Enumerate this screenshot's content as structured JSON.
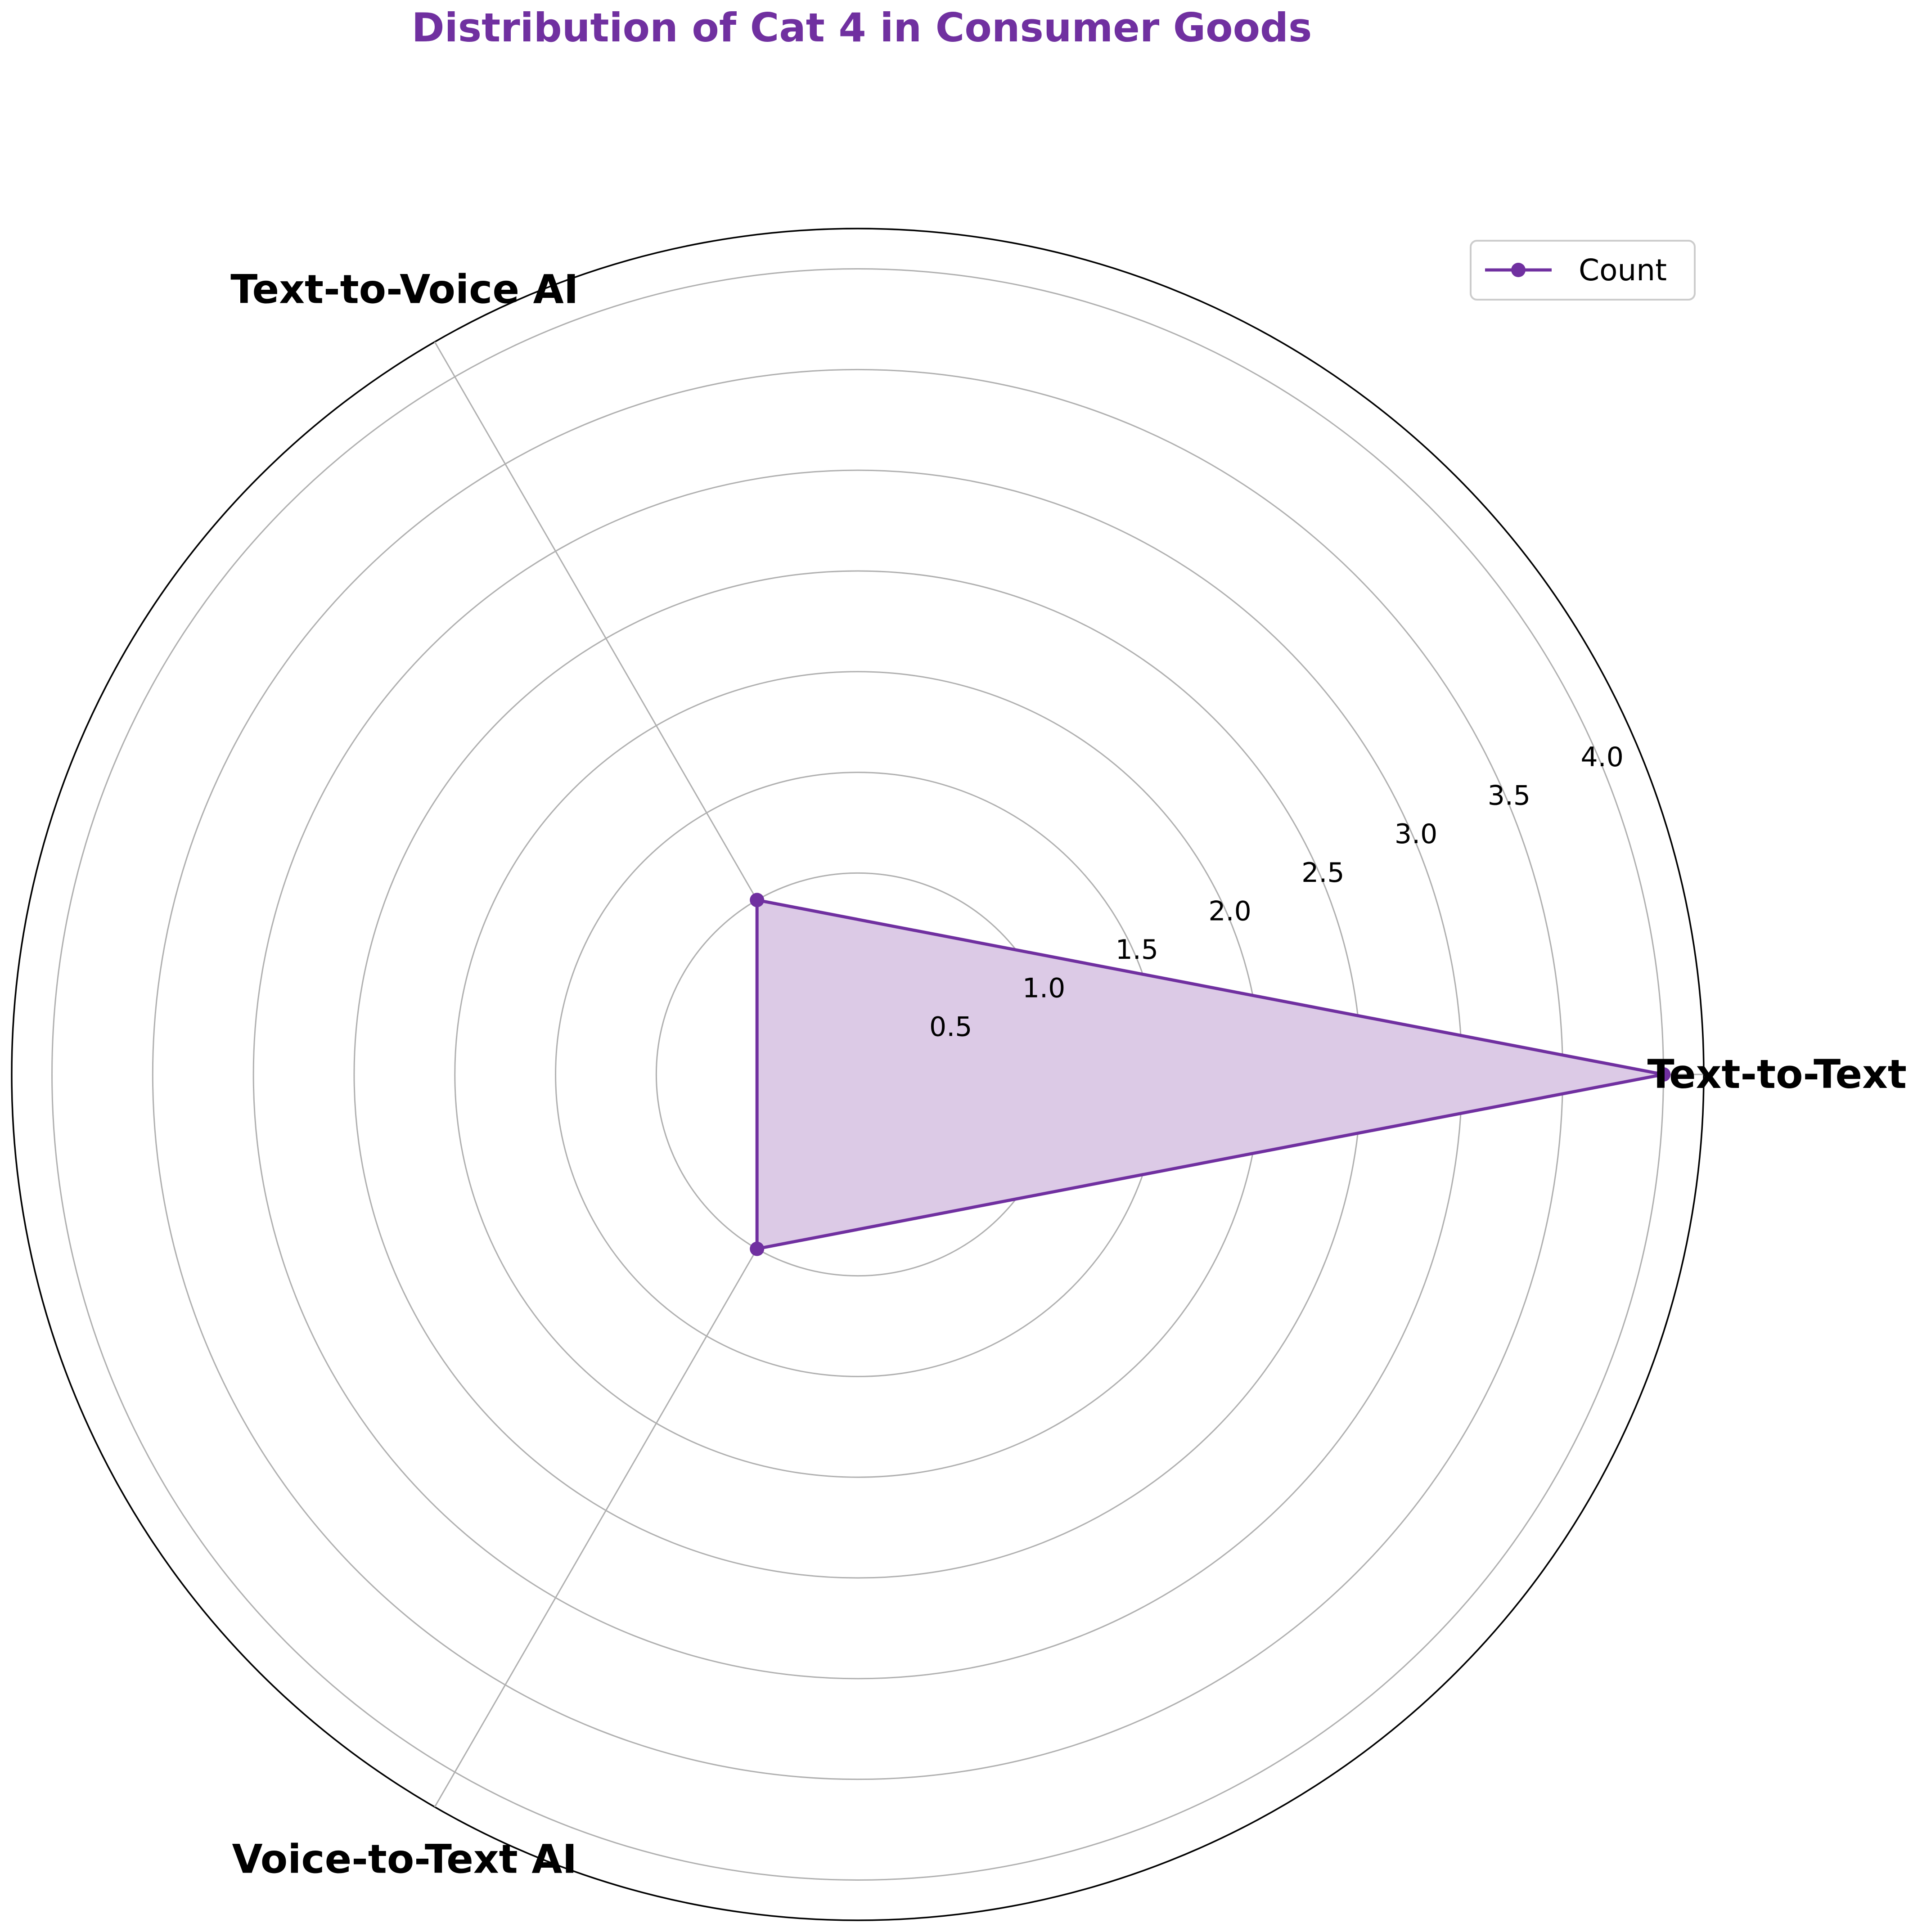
{
  "chart_data": {
    "type": "radar",
    "title": "Distribution of Cat 4 in Consumer Goods",
    "categories": [
      "Text-to-Text AI",
      "Text-to-Voice AI",
      "Voice-to-Text AI"
    ],
    "series": [
      {
        "name": "Count",
        "values": [
          4,
          1,
          1
        ]
      }
    ],
    "rlim": [
      0,
      4.2
    ],
    "rticks": [
      0.5,
      1.0,
      1.5,
      2.0,
      2.5,
      3.0,
      3.5,
      4.0
    ],
    "rtick_labels": [
      "0.5",
      "1.0",
      "1.5",
      "2.0",
      "2.5",
      "3.0",
      "3.5",
      "4.0"
    ],
    "grid": true,
    "legend_position": "top-right",
    "colors": {
      "accent": "#7030a0",
      "fill": "#dccae6",
      "grid": "#b0b0b0",
      "frame": "#000000"
    }
  }
}
